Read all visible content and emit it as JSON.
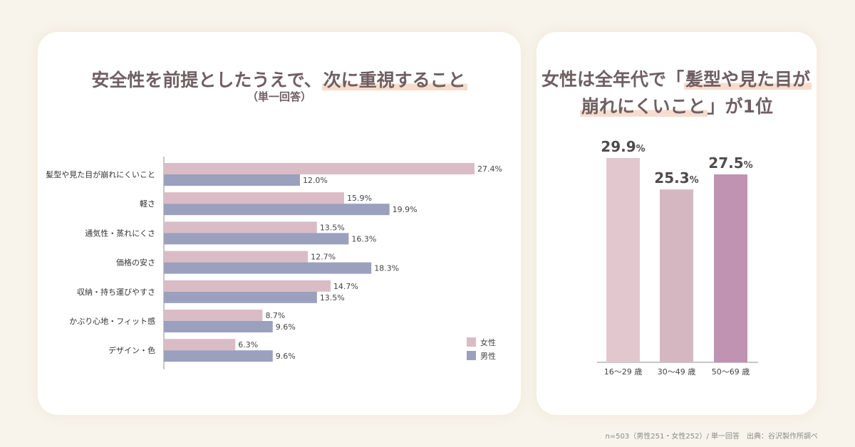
{
  "left_title": {
    "prefix": "安全性を前提としたうえで、",
    "highlight": "次に重視すること",
    "subtitle": "（単一回答）"
  },
  "right_title": {
    "line1_prefix": "女性は全年代で「",
    "line1_highlight": "髪型や見た目が",
    "line2_highlight": "崩れにくいこと",
    "line2_suffix": "」が1位"
  },
  "footnote": "n=503（男性251・女性252）/ 単一回答　出典：谷沢製作所調べ",
  "colors": {
    "female": "#d9bcc5",
    "male": "#9aa0bd",
    "age_bars": [
      "#e3c7ce",
      "#d5b7c2",
      "#bf93b1"
    ]
  },
  "chart_data": [
    {
      "type": "bar",
      "orientation": "horizontal",
      "categories": [
        "髪型や見た目が崩れにくいこと",
        "軽さ",
        "通気性・蒸れにくさ",
        "価格の安さ",
        "収納・持ち運びやすさ",
        "かぶり心地・フィット感",
        "デザイン・色"
      ],
      "series": [
        {
          "name": "女性",
          "values": [
            27.4,
            15.9,
            13.5,
            12.7,
            14.7,
            8.7,
            6.3
          ]
        },
        {
          "name": "男性",
          "values": [
            12.0,
            19.9,
            16.3,
            18.3,
            13.5,
            9.6,
            9.6
          ]
        }
      ],
      "value_suffix": "%",
      "xlim": [
        0,
        30
      ],
      "legend": "bottom-right"
    },
    {
      "type": "bar",
      "categories": [
        "16〜29 歳",
        "30〜49 歳",
        "50〜69 歳"
      ],
      "values": [
        29.9,
        25.3,
        27.5
      ],
      "value_suffix": "%",
      "ylim": [
        0,
        30
      ]
    }
  ]
}
